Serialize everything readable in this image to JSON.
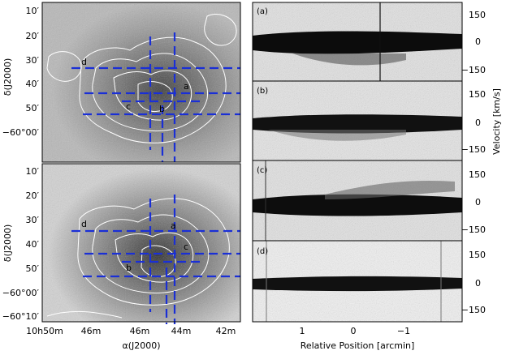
{
  "figure": {
    "left_panels": [
      {
        "id": "top-map",
        "ylabel": "δ(J2000)",
        "yticks": [
          "10′",
          "20′",
          "30′",
          "40′",
          "50′",
          "−60°00′"
        ],
        "region_labels": [
          "d",
          "a",
          "c",
          "b"
        ]
      },
      {
        "id": "bottom-map",
        "ylabel": "δ(J2000)",
        "yticks": [
          "10′",
          "20′",
          "30′",
          "40′",
          "50′",
          "−60°00′",
          "−60°10′"
        ],
        "region_labels": [
          "d",
          "a",
          "c",
          "b"
        ],
        "xlabel": "α(J2000)",
        "xticks": [
          "10h50m",
          "46m",
          "46m",
          "44m",
          "42m"
        ]
      }
    ],
    "right_panels": [
      {
        "tag": "(a)",
        "yticks": [
          "150",
          "0",
          "−150"
        ]
      },
      {
        "tag": "(b)",
        "yticks": [
          "150",
          "0",
          "−150"
        ]
      },
      {
        "tag": "(c)",
        "yticks": [
          "150",
          "0",
          "−150"
        ]
      },
      {
        "tag": "(d)",
        "yticks": [
          "150",
          "0",
          "−150"
        ]
      }
    ],
    "right_ylabel": "Velocity [km/s]",
    "right_xlabel": "Relative Position [arcmin]",
    "right_xticks": [
      "1",
      "0",
      "−1"
    ],
    "colors": {
      "cut_lines": "#1a2fd6",
      "contours": "#ffffff"
    }
  }
}
